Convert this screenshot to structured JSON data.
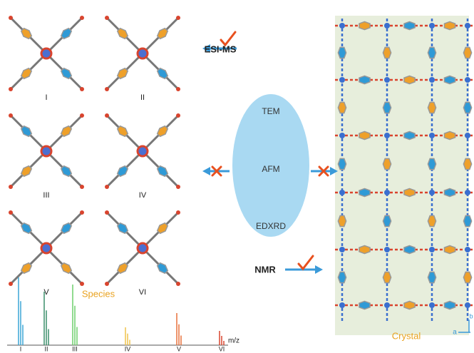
{
  "structures": {
    "labels": [
      "I",
      "II",
      "III",
      "IV",
      "V",
      "VI"
    ]
  },
  "techniques": {
    "esi_ms": "ESI-MS",
    "nmr": "NMR",
    "ellipse": [
      "TEM",
      "AFM",
      "EDXRD"
    ]
  },
  "spectrum": {
    "title": "Species",
    "axis_label": "m/z",
    "peak_labels": [
      "I",
      "II",
      "III",
      "IV",
      "V",
      "VI"
    ]
  },
  "crystal": {
    "label": "Crystal",
    "axes": [
      "a",
      "b"
    ]
  }
}
